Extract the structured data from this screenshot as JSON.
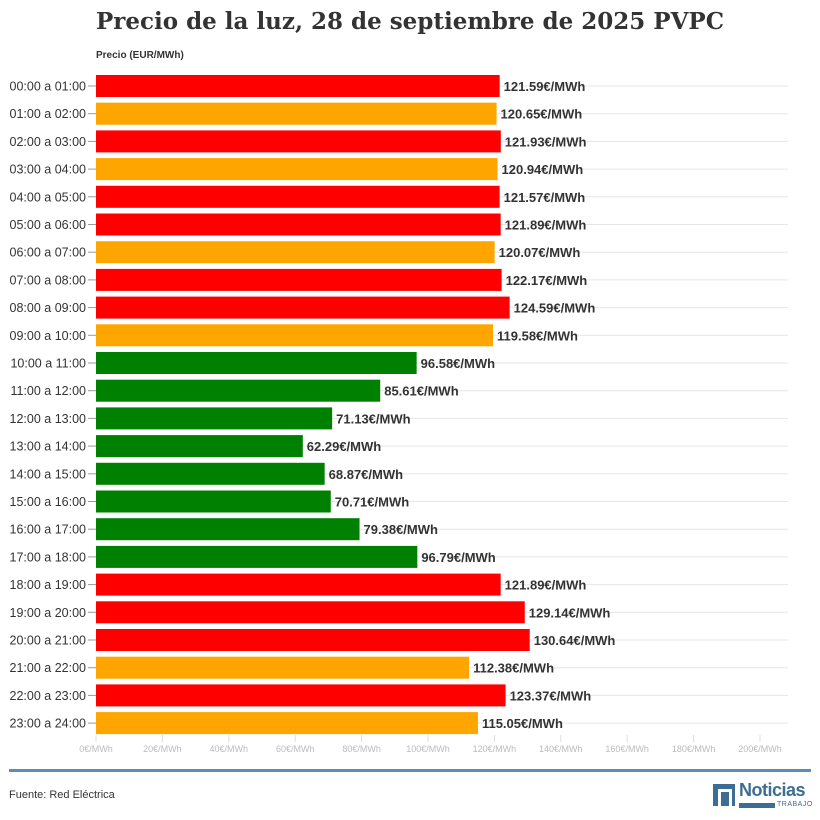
{
  "chart_data": {
    "type": "bar",
    "orientation": "horizontal",
    "title": "Precio de la luz, 28 de septiembre de 2025 PVPC",
    "ylabel": "Precio (EUR/MWh)",
    "xlim": [
      0,
      200
    ],
    "xticks": [
      "0€/MWh",
      "20€/MWh",
      "40€/MWh",
      "60€/MWh",
      "80€/MWh",
      "100€/MWh",
      "120€/MWh",
      "140€/MWh",
      "160€/MWh",
      "180€/MWh",
      "200€/MWh"
    ],
    "grid": true,
    "categories": [
      "00:00 a 01:00",
      "01:00 a 02:00",
      "02:00 a 03:00",
      "03:00 a 04:00",
      "04:00 a 05:00",
      "05:00 a 06:00",
      "06:00 a 07:00",
      "07:00 a 08:00",
      "08:00 a 09:00",
      "09:00 a 10:00",
      "10:00 a 11:00",
      "11:00 a 12:00",
      "12:00 a 13:00",
      "13:00 a 14:00",
      "14:00 a 15:00",
      "15:00 a 16:00",
      "16:00 a 17:00",
      "17:00 a 18:00",
      "18:00 a 19:00",
      "19:00 a 20:00",
      "20:00 a 21:00",
      "21:00 a 22:00",
      "22:00 a 23:00",
      "23:00 a 24:00"
    ],
    "values": [
      121.59,
      120.65,
      121.93,
      120.94,
      121.57,
      121.89,
      120.07,
      122.17,
      124.59,
      119.58,
      96.58,
      85.61,
      71.13,
      62.29,
      68.87,
      70.71,
      79.38,
      96.79,
      121.89,
      129.14,
      130.64,
      112.38,
      123.37,
      115.05
    ],
    "labels": [
      "121.59€/MWh",
      "120.65€/MWh",
      "121.93€/MWh",
      "120.94€/MWh",
      "121.57€/MWh",
      "121.89€/MWh",
      "120.07€/MWh",
      "122.17€/MWh",
      "124.59€/MWh",
      "119.58€/MWh",
      "96.58€/MWh",
      "85.61€/MWh",
      "71.13€/MWh",
      "62.29€/MWh",
      "68.87€/MWh",
      "70.71€/MWh",
      "79.38€/MWh",
      "96.79€/MWh",
      "121.89€/MWh",
      "129.14€/MWh",
      "130.64€/MWh",
      "112.38€/MWh",
      "123.37€/MWh",
      "115.05€/MWh"
    ],
    "colors": [
      "#ff0000",
      "#ffa500",
      "#ff0000",
      "#ffa500",
      "#ff0000",
      "#ff0000",
      "#ffa500",
      "#ff0000",
      "#ff0000",
      "#ffa500",
      "#008000",
      "#008000",
      "#008000",
      "#008000",
      "#008000",
      "#008000",
      "#008000",
      "#008000",
      "#ff0000",
      "#ff0000",
      "#ff0000",
      "#ffa500",
      "#ff0000",
      "#ffa500"
    ]
  },
  "footer": {
    "source": "Fuente: Red Eléctrica",
    "logo": "Noticias",
    "logo_sub": "TRABAJO"
  }
}
